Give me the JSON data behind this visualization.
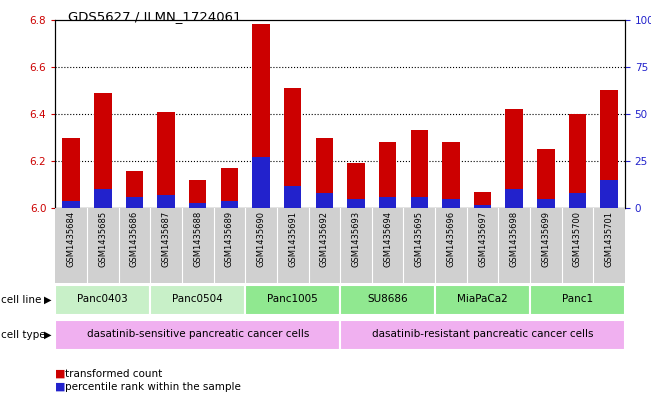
{
  "title": "GDS5627 / ILMN_1724061",
  "samples": [
    "GSM1435684",
    "GSM1435685",
    "GSM1435686",
    "GSM1435687",
    "GSM1435688",
    "GSM1435689",
    "GSM1435690",
    "GSM1435691",
    "GSM1435692",
    "GSM1435693",
    "GSM1435694",
    "GSM1435695",
    "GSM1435696",
    "GSM1435697",
    "GSM1435698",
    "GSM1435699",
    "GSM1435700",
    "GSM1435701"
  ],
  "transformed_count": [
    6.3,
    6.49,
    6.16,
    6.41,
    6.12,
    6.17,
    6.78,
    6.51,
    6.3,
    6.19,
    6.28,
    6.33,
    6.28,
    6.07,
    6.42,
    6.25,
    6.4,
    6.5
  ],
  "percentile_rank": [
    4,
    10,
    6,
    7,
    3,
    4,
    27,
    12,
    8,
    5,
    6,
    6,
    5,
    2,
    10,
    5,
    8,
    15
  ],
  "cell_lines": [
    {
      "name": "Panc0403",
      "start": 0,
      "end": 2
    },
    {
      "name": "Panc0504",
      "start": 3,
      "end": 5
    },
    {
      "name": "Panc1005",
      "start": 6,
      "end": 8
    },
    {
      "name": "SU8686",
      "start": 9,
      "end": 11
    },
    {
      "name": "MiaPaCa2",
      "start": 12,
      "end": 14
    },
    {
      "name": "Panc1",
      "start": 15,
      "end": 17
    }
  ],
  "cell_line_colors": [
    "#c8f0c8",
    "#c8f0c8",
    "#90e890",
    "#90e890",
    "#90e890",
    "#90e890"
  ],
  "cell_types": [
    {
      "name": "dasatinib-sensitive pancreatic cancer cells",
      "start": 0,
      "end": 8
    },
    {
      "name": "dasatinib-resistant pancreatic cancer cells",
      "start": 9,
      "end": 17
    }
  ],
  "cell_type_colors": [
    "#f0b0f0",
    "#f0b0f0"
  ],
  "ylim_left": [
    6.0,
    6.8
  ],
  "ylim_right": [
    0,
    100
  ],
  "yticks_left": [
    6.0,
    6.2,
    6.4,
    6.6,
    6.8
  ],
  "yticks_right": [
    0,
    25,
    50,
    75,
    100
  ],
  "ytick_labels_right": [
    "0",
    "25",
    "50",
    "75",
    "100%"
  ],
  "bar_color": "#cc0000",
  "marker_color": "#2222cc",
  "bar_bottom": 6.0,
  "cell_line_label": "cell line",
  "cell_type_label": "cell type",
  "xlabel_bg": "#d0d0d0",
  "n_samples": 18
}
